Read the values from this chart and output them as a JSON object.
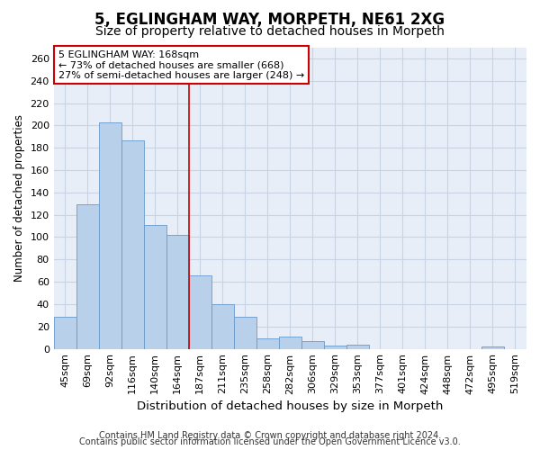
{
  "title1": "5, EGLINGHAM WAY, MORPETH, NE61 2XG",
  "title2": "Size of property relative to detached houses in Morpeth",
  "xlabel": "Distribution of detached houses by size in Morpeth",
  "ylabel": "Number of detached properties",
  "categories": [
    "45sqm",
    "69sqm",
    "92sqm",
    "116sqm",
    "140sqm",
    "164sqm",
    "187sqm",
    "211sqm",
    "235sqm",
    "258sqm",
    "282sqm",
    "306sqm",
    "329sqm",
    "353sqm",
    "377sqm",
    "401sqm",
    "424sqm",
    "448sqm",
    "472sqm",
    "495sqm",
    "519sqm"
  ],
  "values": [
    29,
    129,
    203,
    187,
    111,
    102,
    66,
    40,
    29,
    9,
    11,
    7,
    3,
    4,
    0,
    0,
    0,
    0,
    0,
    2,
    0
  ],
  "bar_color": "#b8d0ea",
  "bar_edge_color": "#6699cc",
  "grid_color": "#c8d4e4",
  "background_color": "#e8eef8",
  "annotation_line1": "5 EGLINGHAM WAY: 168sqm",
  "annotation_line2": "← 73% of detached houses are smaller (668)",
  "annotation_line3": "27% of semi-detached houses are larger (248) →",
  "annotation_box_color": "#ffffff",
  "annotation_box_edge": "#cc0000",
  "vline_color": "#cc0000",
  "vline_x_index": 5.5,
  "ylim": [
    0,
    270
  ],
  "yticks": [
    0,
    20,
    40,
    60,
    80,
    100,
    120,
    140,
    160,
    180,
    200,
    220,
    240,
    260
  ],
  "footer1": "Contains HM Land Registry data © Crown copyright and database right 2024.",
  "footer2": "Contains public sector information licensed under the Open Government Licence v3.0.",
  "title1_fontsize": 12,
  "title2_fontsize": 10,
  "xlabel_fontsize": 9.5,
  "ylabel_fontsize": 8.5,
  "tick_fontsize": 8,
  "annotation_fontsize": 8,
  "footer_fontsize": 7
}
